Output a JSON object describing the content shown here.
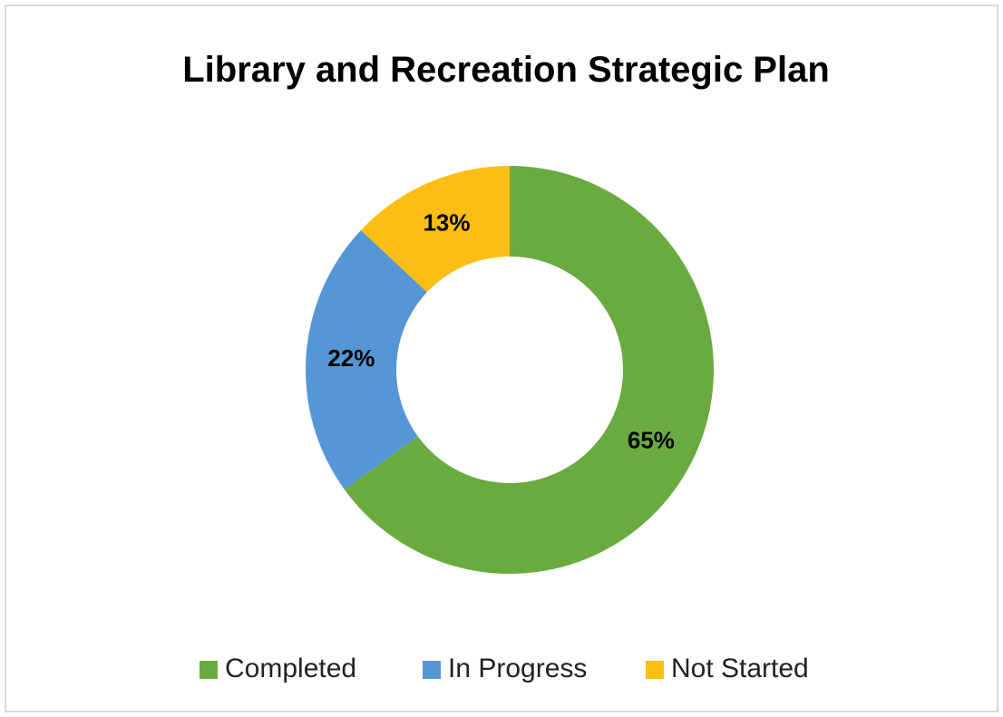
{
  "chart_data": {
    "type": "donut",
    "title": "Library and Recreation Strategic Plan",
    "categories": [
      "Completed",
      "In Progress",
      "Not Started"
    ],
    "values": [
      65,
      22,
      13
    ],
    "value_labels": [
      "65%",
      "22%",
      "13%"
    ],
    "colors": [
      "#6aab3f",
      "#5596d6",
      "#fcbd14"
    ],
    "legend": "bottom"
  }
}
